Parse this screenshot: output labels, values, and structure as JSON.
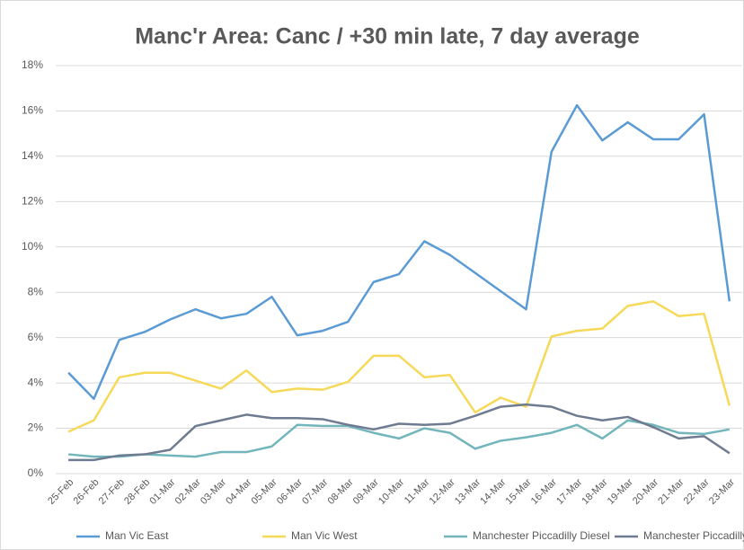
{
  "chart_data": {
    "type": "line",
    "title": "Manc'r Area: Canc / +30 min late, 7 day average",
    "categories": [
      "25-Feb",
      "26-Feb",
      "27-Feb",
      "28-Feb",
      "01-Mar",
      "02-Mar",
      "03-Mar",
      "04-Mar",
      "05-Mar",
      "06-Mar",
      "07-Mar",
      "08-Mar",
      "09-Mar",
      "10-Mar",
      "11-Mar",
      "12-Mar",
      "13-Mar",
      "14-Mar",
      "15-Mar",
      "16-Mar",
      "17-Mar",
      "18-Mar",
      "19-Mar",
      "20-Mar",
      "21-Mar",
      "22-Mar",
      "23-Mar"
    ],
    "series": [
      {
        "name": "Man Vic East",
        "color": "#5b9bd5",
        "values": [
          4.45,
          3.3,
          5.9,
          6.25,
          6.8,
          7.25,
          6.85,
          7.05,
          7.8,
          6.1,
          6.3,
          6.7,
          8.45,
          8.8,
          10.25,
          9.65,
          8.85,
          8.05,
          7.25,
          14.2,
          16.25,
          14.7,
          15.5,
          14.75,
          14.75,
          15.85,
          7.6
        ]
      },
      {
        "name": "Man Vic West",
        "color": "#f7d959",
        "values": [
          1.85,
          2.35,
          4.25,
          4.45,
          4.45,
          4.1,
          3.75,
          4.55,
          3.6,
          3.75,
          3.7,
          4.05,
          5.2,
          5.2,
          4.25,
          4.35,
          2.7,
          3.35,
          2.95,
          6.05,
          6.3,
          6.4,
          7.4,
          7.6,
          6.95,
          7.05,
          3.0
        ]
      },
      {
        "name": "Manchester Piccadilly Diesel",
        "color": "#72b6bc",
        "values": [
          0.85,
          0.75,
          0.75,
          0.85,
          0.8,
          0.75,
          0.95,
          0.95,
          1.2,
          2.15,
          2.1,
          2.1,
          1.8,
          1.55,
          2.0,
          1.8,
          1.1,
          1.45,
          1.6,
          1.8,
          2.15,
          1.55,
          2.35,
          2.15,
          1.8,
          1.75,
          1.95
        ]
      },
      {
        "name": "Manchester Piccadilly Electric",
        "color": "#6e7b90",
        "values": [
          0.6,
          0.6,
          0.8,
          0.85,
          1.05,
          2.1,
          2.35,
          2.6,
          2.45,
          2.45,
          2.4,
          2.15,
          1.95,
          2.2,
          2.15,
          2.2,
          2.55,
          2.95,
          3.05,
          2.95,
          2.55,
          2.35,
          2.5,
          2.05,
          1.55,
          1.65,
          0.9
        ]
      }
    ],
    "ylim": [
      0,
      18
    ],
    "yticks": [
      {
        "value": 0,
        "label": "0%"
      },
      {
        "value": 2,
        "label": "2%"
      },
      {
        "value": 4,
        "label": "4%"
      },
      {
        "value": 6,
        "label": "6%"
      },
      {
        "value": 8,
        "label": "8%"
      },
      {
        "value": 10,
        "label": "10%"
      },
      {
        "value": 12,
        "label": "12%"
      },
      {
        "value": 14,
        "label": "14%"
      },
      {
        "value": 16,
        "label": "16%"
      },
      {
        "value": 18,
        "label": "18%"
      }
    ],
    "grid": true,
    "legend": "bottom"
  }
}
